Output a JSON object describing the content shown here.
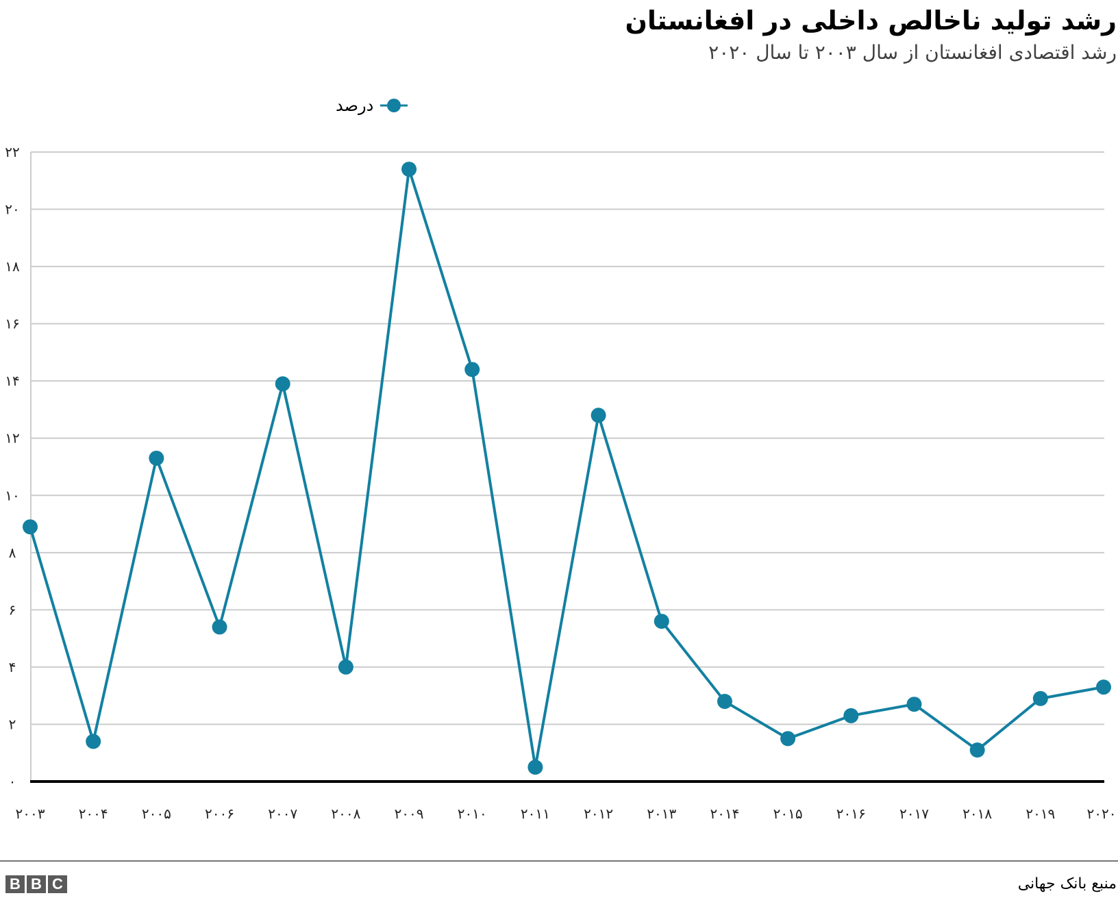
{
  "header": {
    "title": "رشد تولید ناخالص داخلی در افغانستان",
    "subtitle": "رشد اقتصادی افغانستان از سال ۲۰۰۳ تا سال ۲۰۲۰"
  },
  "legend": {
    "label": "درصد",
    "color": "#1380A1"
  },
  "footer": {
    "source": "منبع بانک جهانی",
    "logo_letters": [
      "B",
      "B",
      "C"
    ]
  },
  "axes": {
    "y_ticks": [
      "۰",
      "۲",
      "۴",
      "۶",
      "۸",
      "۱۰",
      "۱۲",
      "۱۴",
      "۱۶",
      "۱۸",
      "۲۰",
      "۲۲"
    ],
    "x_ticks": [
      "۲۰۰۳",
      "۲۰۰۴",
      "۲۰۰۵",
      "۲۰۰۶",
      "۲۰۰۷",
      "۲۰۰۸",
      "۲۰۰۹",
      "۲۰۱۰",
      "۲۰۱۱",
      "۲۰۱۲",
      "۲۰۱۳",
      "۲۰۱۴",
      "۲۰۱۵",
      "۲۰۱۶",
      "۲۰۱۷",
      "۲۰۱۸",
      "۲۰۱۹",
      "۲۰۲۰"
    ]
  },
  "chart_data": {
    "type": "line",
    "title": "رشد تولید ناخالص داخلی در افغانستان",
    "subtitle": "رشد اقتصادی افغانستان از سال ۲۰۰۳ تا سال ۲۰۲۰",
    "xlabel": "",
    "ylabel": "",
    "x": [
      2003,
      2004,
      2005,
      2006,
      2007,
      2008,
      2009,
      2010,
      2011,
      2012,
      2013,
      2014,
      2015,
      2016,
      2017,
      2018,
      2019,
      2020
    ],
    "series": [
      {
        "name": "درصد",
        "color": "#1380A1",
        "values": [
          8.9,
          1.4,
          11.3,
          5.4,
          13.9,
          4.0,
          21.4,
          14.4,
          0.5,
          12.8,
          5.6,
          2.8,
          1.5,
          2.3,
          2.7,
          1.1,
          2.9,
          3.3
        ]
      }
    ],
    "ylim": [
      0,
      22
    ],
    "y_tick_values": [
      0,
      2,
      4,
      6,
      8,
      10,
      12,
      14,
      16,
      18,
      20,
      22
    ],
    "grid": true,
    "legend_position": "top",
    "source": "منبع بانک جهانی"
  }
}
